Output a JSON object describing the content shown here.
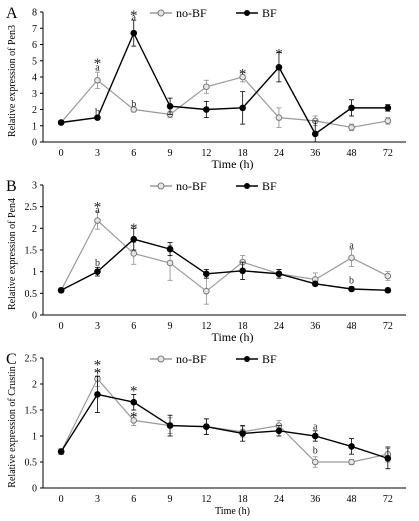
{
  "chart_data": [
    {
      "type": "line",
      "panel_label": "A",
      "title": "",
      "xlabel": "Time (h)",
      "ylabel": "Relative expression of Pen3",
      "categories": [
        "0",
        "3",
        "6",
        "9",
        "12",
        "18",
        "24",
        "36",
        "48",
        "72"
      ],
      "ylim": [
        0,
        8
      ],
      "yticks": [
        "0",
        "1",
        "2",
        "3",
        "4",
        "5",
        "6",
        "7",
        "8"
      ],
      "grid": false,
      "legend_position": "top-center",
      "series": [
        {
          "name": "no-BF",
          "color": "#9a9a9a",
          "marker": "open-circle",
          "values": [
            1.2,
            3.8,
            2.0,
            1.7,
            3.4,
            4.0,
            1.5,
            1.3,
            0.9,
            1.3
          ],
          "errors": [
            0.1,
            0.5,
            0.15,
            0.2,
            0.4,
            0.3,
            0.6,
            0.3,
            0.2,
            0.2
          ]
        },
        {
          "name": "BF",
          "color": "#000000",
          "marker": "filled-circle",
          "values": [
            1.2,
            1.5,
            6.7,
            2.2,
            2.0,
            2.1,
            4.6,
            0.5,
            2.1,
            2.1
          ],
          "errors": [
            0.1,
            0.1,
            0.8,
            0.5,
            0.5,
            1.0,
            0.9,
            0.8,
            0.5,
            0.2
          ]
        }
      ],
      "annotations": [
        {
          "x": "3",
          "y": 5.1,
          "text": "*"
        },
        {
          "x": "3",
          "y": 4.6,
          "text": "a"
        },
        {
          "x": "3",
          "y": 1.85,
          "text": "b"
        },
        {
          "x": "6",
          "y": 8.05,
          "text": "*"
        },
        {
          "x": "6",
          "y": 7.65,
          "text": "a"
        },
        {
          "x": "6",
          "y": 2.35,
          "text": "b"
        },
        {
          "x": "18",
          "y": 4.45,
          "text": "*"
        },
        {
          "x": "24",
          "y": 5.7,
          "text": "*"
        }
      ]
    },
    {
      "type": "line",
      "panel_label": "B",
      "title": "",
      "xlabel": "Time (h)",
      "ylabel": "Relative expression of Pen4",
      "categories": [
        "0",
        "3",
        "6",
        "9",
        "12",
        "18",
        "24",
        "36",
        "48",
        "72"
      ],
      "ylim": [
        0,
        3
      ],
      "yticks": [
        "0",
        "0.5",
        "1",
        "1.5",
        "2",
        "2.5",
        "3"
      ],
      "grid": false,
      "legend_position": "top-center",
      "series": [
        {
          "name": "no-BF",
          "color": "#9a9a9a",
          "marker": "open-circle",
          "values": [
            0.57,
            2.18,
            1.42,
            1.2,
            0.55,
            1.22,
            0.95,
            0.82,
            1.32,
            0.9
          ],
          "errors": [
            0.05,
            0.2,
            0.25,
            0.4,
            0.3,
            0.15,
            0.1,
            0.15,
            0.2,
            0.1
          ]
        },
        {
          "name": "BF",
          "color": "#000000",
          "marker": "filled-circle",
          "values": [
            0.57,
            1.0,
            1.75,
            1.52,
            0.95,
            1.02,
            0.95,
            0.72,
            0.6,
            0.57
          ],
          "errors": [
            0.05,
            0.1,
            0.25,
            0.15,
            0.1,
            0.2,
            0.1,
            0.05,
            0.05,
            0.05
          ]
        }
      ],
      "annotations": [
        {
          "x": "3",
          "y": 2.6,
          "text": "*"
        },
        {
          "x": "3",
          "y": 2.42,
          "text": "a"
        },
        {
          "x": "3",
          "y": 1.2,
          "text": "b"
        },
        {
          "x": "6",
          "y": 2.1,
          "text": "*"
        },
        {
          "x": "48",
          "y": 1.6,
          "text": "a"
        },
        {
          "x": "48",
          "y": 0.8,
          "text": "b"
        }
      ]
    },
    {
      "type": "line",
      "panel_label": "C",
      "title": "",
      "xlabel": "Time (h)",
      "ylabel": "Relative expression of Crustin",
      "categories": [
        "0",
        "3",
        "6",
        "9",
        "12",
        "18",
        "24",
        "36",
        "48",
        "72"
      ],
      "ylim": [
        0,
        2.5
      ],
      "yticks": [
        "0",
        "0.5",
        "1",
        "1.5",
        "2",
        "2.5"
      ],
      "grid": false,
      "legend_position": "top-center",
      "series": [
        {
          "name": "no-BF",
          "color": "#9a9a9a",
          "marker": "open-circle",
          "values": [
            0.7,
            2.1,
            1.3,
            1.2,
            1.18,
            1.08,
            1.2,
            0.5,
            0.5,
            0.65
          ],
          "errors": [
            0.05,
            0.15,
            0.1,
            0.15,
            0.15,
            0.1,
            0.1,
            0.1,
            0.05,
            0.15
          ]
        },
        {
          "name": "BF",
          "color": "#000000",
          "marker": "filled-circle",
          "values": [
            0.7,
            1.8,
            1.65,
            1.2,
            1.18,
            1.05,
            1.1,
            1.0,
            0.8,
            0.57
          ],
          "errors": [
            0.05,
            0.35,
            0.15,
            0.2,
            0.15,
            0.15,
            0.1,
            0.1,
            0.15,
            0.2
          ]
        }
      ],
      "annotations": [
        {
          "x": "3",
          "y": 2.45,
          "text": "*"
        },
        {
          "x": "3",
          "y": 2.3,
          "text": "*"
        },
        {
          "x": "6",
          "y": 1.95,
          "text": "*"
        },
        {
          "x": "6",
          "y": 1.45,
          "text": "*"
        },
        {
          "x": "36",
          "y": 1.18,
          "text": "a"
        },
        {
          "x": "36",
          "y": 0.72,
          "text": "b"
        }
      ]
    }
  ]
}
